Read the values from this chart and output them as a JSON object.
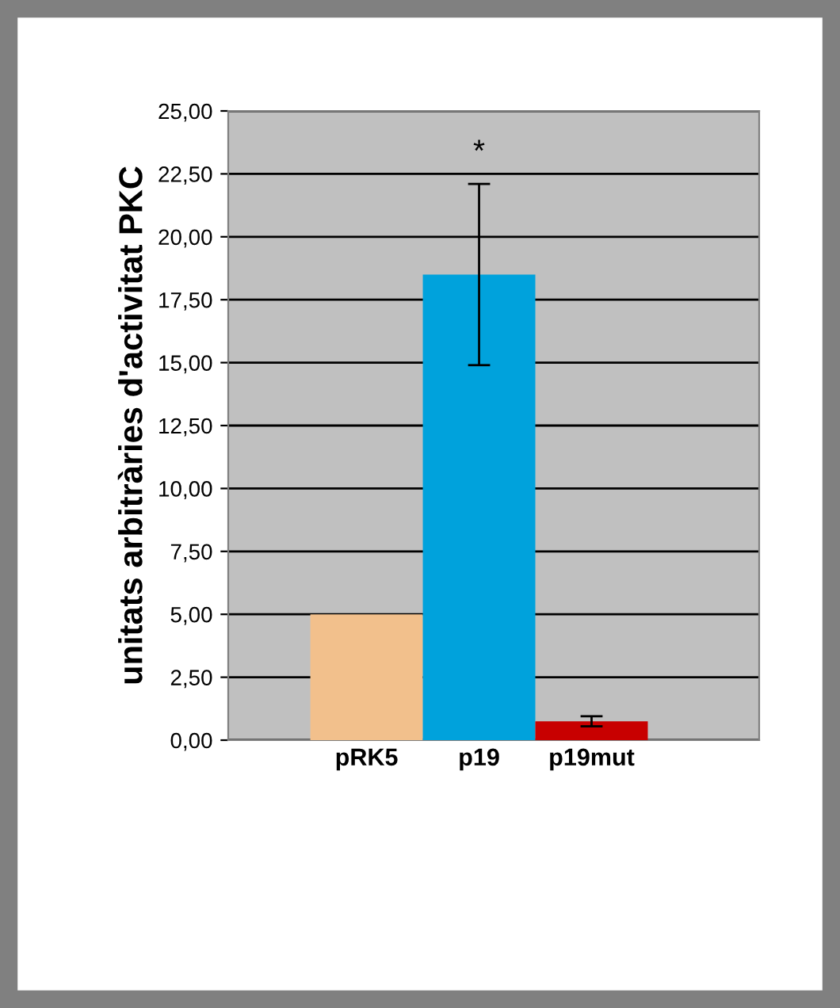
{
  "chart_data": {
    "type": "bar",
    "ylabel": "unitats arbitràries d'activitat PKC",
    "categories": [
      "pRK5",
      "p19",
      "p19mut"
    ],
    "values": [
      5.0,
      18.5,
      0.75
    ],
    "errors": [
      null,
      3.6,
      0.2
    ],
    "colors": [
      "#f2c08c",
      "#00a2dc",
      "#c80000"
    ],
    "ylim": [
      0,
      25
    ],
    "yticks": [
      {
        "value": 0,
        "label": "0,00"
      },
      {
        "value": 2.5,
        "label": "2,50"
      },
      {
        "value": 5,
        "label": "5,00"
      },
      {
        "value": 7.5,
        "label": "7,50"
      },
      {
        "value": 10,
        "label": "10,00"
      },
      {
        "value": 12.5,
        "label": "12,50"
      },
      {
        "value": 15,
        "label": "15,00"
      },
      {
        "value": 17.5,
        "label": "17,50"
      },
      {
        "value": 20,
        "label": "20,00"
      },
      {
        "value": 22.5,
        "label": "22,50"
      },
      {
        "value": 25,
        "label": "25,00"
      }
    ],
    "annotations": [
      "*"
    ],
    "grid": "y"
  }
}
